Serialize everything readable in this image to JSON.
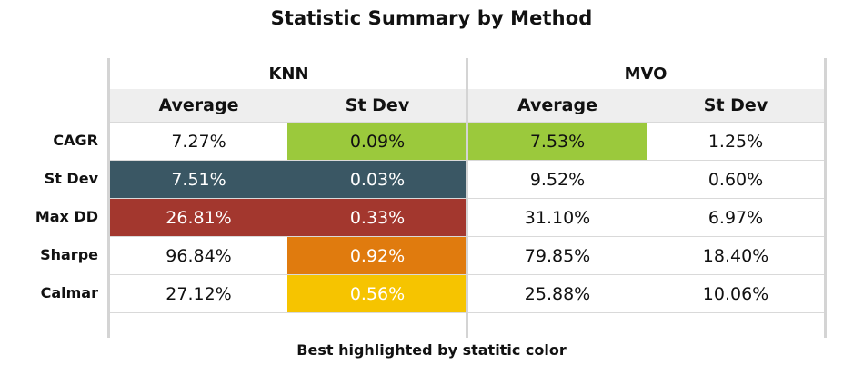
{
  "title": "Statistic Summary by Method",
  "caption": "Best highlighted by statitic color",
  "chart_data": {
    "type": "table",
    "groups": [
      "KNN",
      "MVO"
    ],
    "columns": [
      "Average",
      "St Dev",
      "Average",
      "St Dev"
    ],
    "rows": [
      {
        "label": "CAGR",
        "values": [
          "7.27%",
          "0.09%",
          "7.53%",
          "1.25%"
        ],
        "fills": [
          "",
          "#9bc93c",
          "#9bc93c",
          ""
        ]
      },
      {
        "label": "St Dev",
        "values": [
          "7.51%",
          "0.03%",
          "9.52%",
          "0.60%"
        ],
        "fills": [
          "#3a5764",
          "#3a5764",
          "",
          ""
        ]
      },
      {
        "label": "Max DD",
        "values": [
          "26.81%",
          "0.33%",
          "31.10%",
          "6.97%"
        ],
        "fills": [
          "#a3372e",
          "#a3372e",
          "",
          ""
        ]
      },
      {
        "label": "Sharpe",
        "values": [
          "96.84%",
          "0.92%",
          "79.85%",
          "18.40%"
        ],
        "fills": [
          "",
          "#e07b0e",
          "",
          ""
        ]
      },
      {
        "label": "Calmar",
        "values": [
          "27.12%",
          "0.56%",
          "25.88%",
          "10.06%"
        ],
        "fills": [
          "",
          "#f6c400",
          "",
          ""
        ]
      }
    ]
  }
}
